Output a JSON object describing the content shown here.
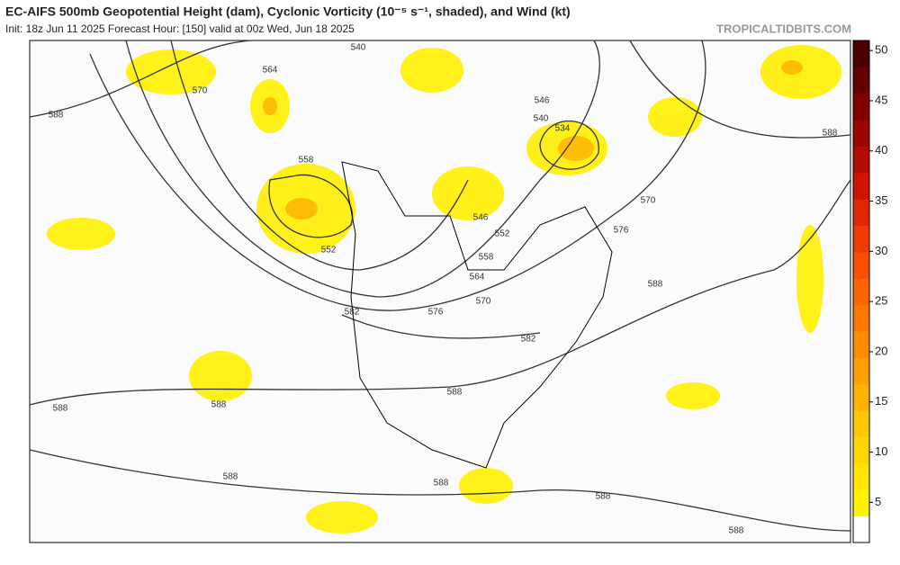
{
  "header": {
    "title": "EC-AIFS 500mb Geopotential Height (dam), Cyclonic Vorticity (10⁻⁵ s⁻¹, shaded), and Wind (kt)",
    "subtitle": "Init: 18z Jun 11 2025   Forecast Hour: [150]   valid at 00z Wed, Jun 18 2025",
    "site": "TROPICALTIDBITS.COM"
  },
  "colorbar": {
    "lim": [
      1,
      51
    ],
    "ticks": [
      5,
      10,
      15,
      20,
      25,
      30,
      35,
      40,
      45,
      50
    ],
    "colors": [
      "#ffffff",
      "#fff200",
      "#ffe600",
      "#ffd700",
      "#ffc800",
      "#ffb400",
      "#ffa000",
      "#ff8c00",
      "#ff7800",
      "#ff6400",
      "#f85000",
      "#ee3c00",
      "#e02800",
      "#cc1400",
      "#b40a00",
      "#9a0500",
      "#800000",
      "#640000",
      "#4a0000"
    ]
  },
  "contour_labels": [
    "564",
    "570",
    "588",
    "558",
    "552",
    "540",
    "546",
    "540",
    "534",
    "546",
    "552",
    "558",
    "564",
    "570",
    "576",
    "582",
    "582",
    "588",
    "588",
    "588",
    "588",
    "588",
    "588",
    "588",
    "576",
    "570",
    "588",
    "588"
  ]
}
